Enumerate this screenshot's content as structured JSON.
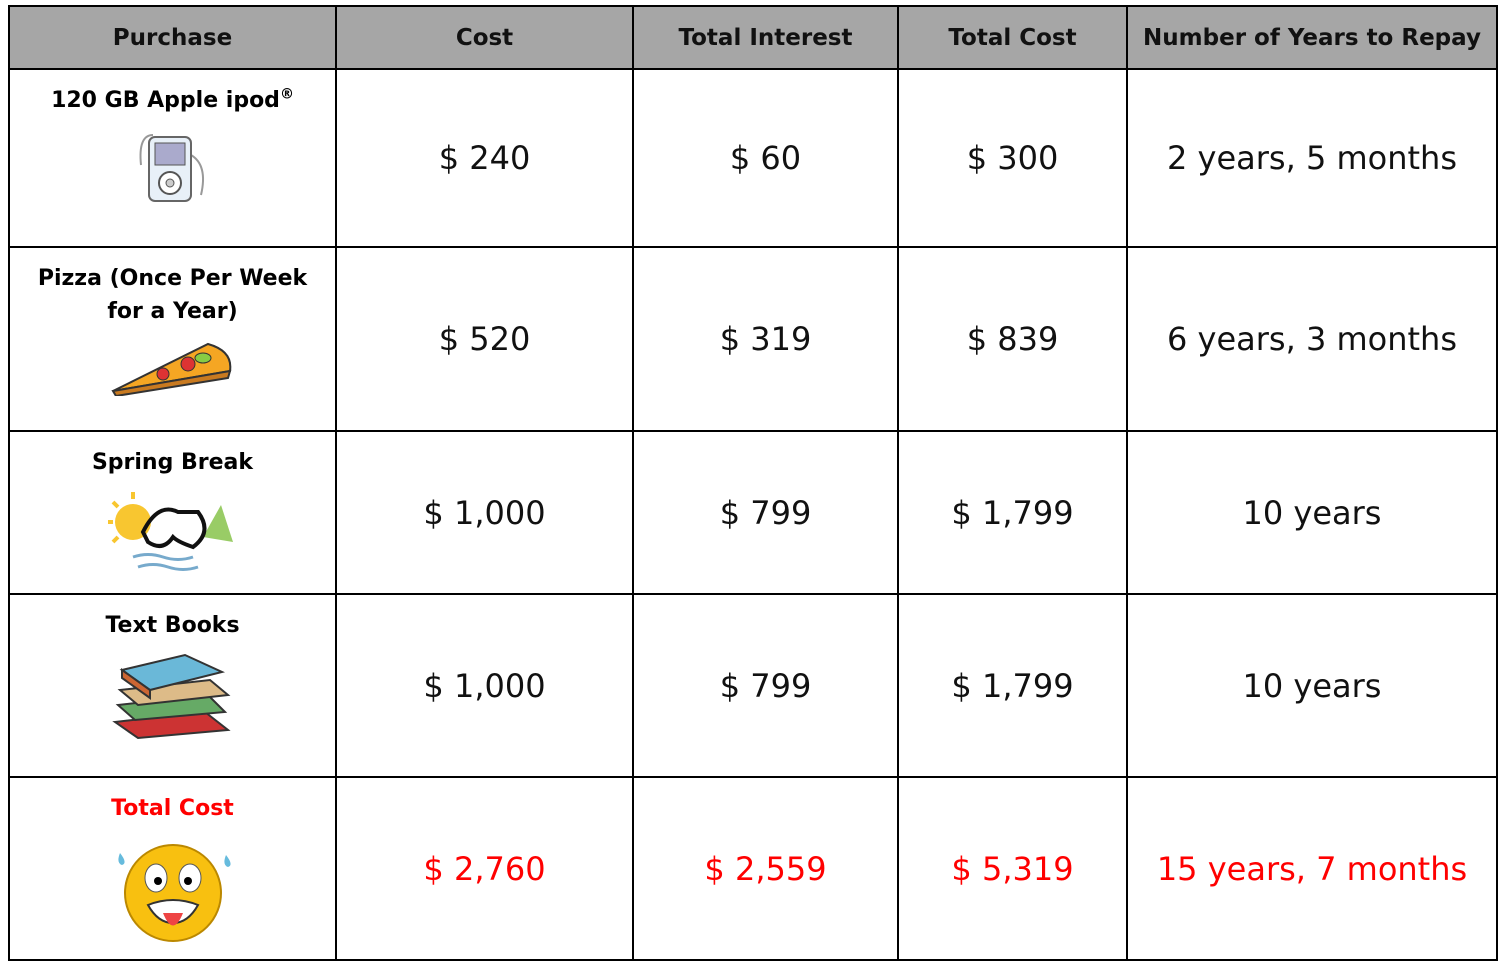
{
  "table": {
    "header": [
      "Purchase",
      "Cost",
      "Total Interest",
      "Total Cost",
      "Number of Years to Repay"
    ],
    "rows": [
      [
        "120 GB Apple  ipod",
        "$ 240",
        "$ 60",
        "$ 300",
        "2 years, 5 months"
      ],
      [
        "Pizza (Once Per Week for a Year)",
        "$ 520",
        "$ 319",
        "$ 839",
        "6 years, 3 months"
      ],
      [
        "Spring Break",
        "$ 1,000",
        "$ 799",
        "$ 1,799",
        "10 years"
      ],
      [
        "Text Books",
        "$ 1,000",
        "$ 799",
        "$ 1,799",
        "10 years"
      ],
      [
        "Total Cost",
        "$ 2,760",
        "$ 2,559",
        "$ 5,319",
        "15 years, 7 months"
      ]
    ],
    "trademark": "®"
  }
}
